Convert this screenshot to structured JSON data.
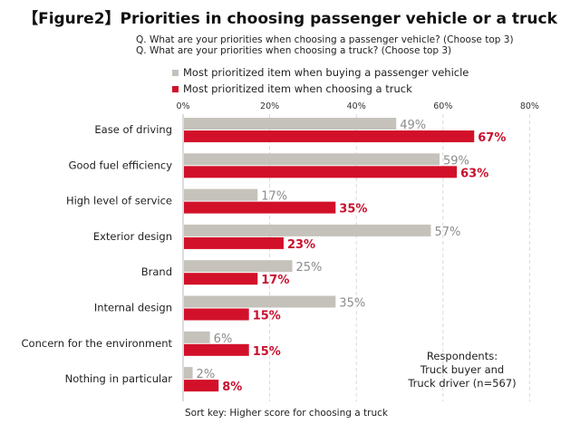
{
  "header": {
    "title": "【Figure2】Priorities in choosing passenger vehicle or a truck",
    "question_1": "Q. What are your priorities when choosing a passenger vehicle? (Choose top 3)",
    "question_2": "Q. What are your priorities when choosing a truck? (Choose top 3)"
  },
  "colors": {
    "passenger": "#c4c2ba",
    "truck": "#d2102a",
    "passenger_label": "#8c8c8c",
    "truck_label": "#c8102e",
    "axis": "#bbbbbb",
    "grid": "#d9d9d9"
  },
  "respondents_note": {
    "line1": "Respondents:",
    "line2": "Truck buyer and",
    "line3": "Truck driver (n=567)"
  },
  "sort_key": "Sort key: Higher score for choosing a truck",
  "chart_data": {
    "type": "bar",
    "orientation": "horizontal",
    "title": "【Figure2】Priorities in choosing passenger vehicle or a truck",
    "categories": [
      "Ease of driving",
      "Good fuel efficiency",
      "High level of service",
      "Exterior design",
      "Brand",
      "Internal design",
      "Concern for the environment",
      "Nothing in particular"
    ],
    "series": [
      {
        "name": "Most prioritized item when buying a passenger vehicle",
        "values": [
          49,
          59,
          17,
          57,
          25,
          35,
          6,
          2
        ]
      },
      {
        "name": "Most prioritized item when choosing a truck",
        "values": [
          67,
          63,
          35,
          23,
          17,
          15,
          15,
          8
        ]
      }
    ],
    "value_suffix": "%",
    "xlim": [
      0,
      80
    ],
    "xticks": [
      "0%",
      "20%",
      "40%",
      "60%",
      "80%"
    ],
    "tick_values": [
      0,
      20,
      40,
      60,
      80
    ],
    "legend": "top",
    "grid": true
  }
}
